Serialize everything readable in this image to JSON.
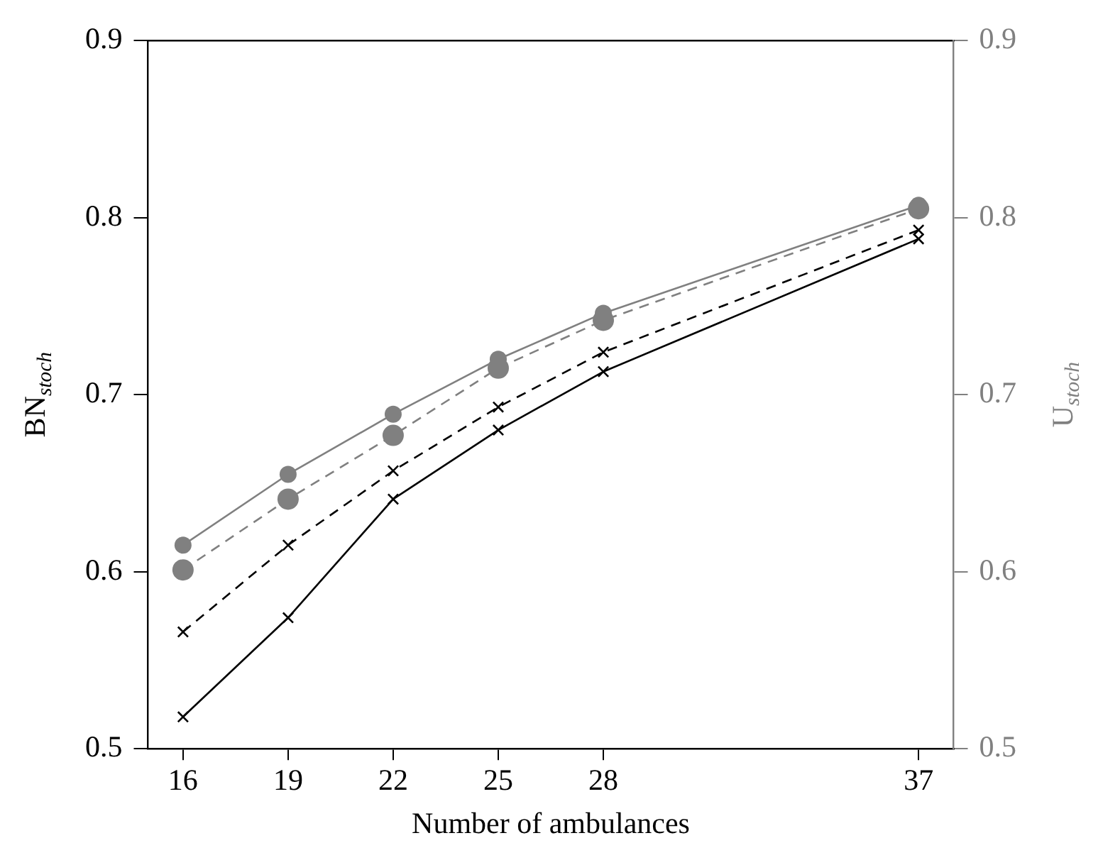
{
  "chart_data": {
    "type": "line",
    "xlabel": "Number of ambulances",
    "ylabel": "BN$_{stoch}$",
    "y2label": "U$_{stoch}$",
    "x": [
      16,
      19,
      22,
      25,
      28,
      37
    ],
    "xlim": [
      15,
      38
    ],
    "xticks": [
      16,
      19,
      22,
      25,
      28,
      37
    ],
    "ylim": [
      0.5,
      0.9
    ],
    "yticks": [
      0.5,
      0.6,
      0.7,
      0.8,
      0.9
    ],
    "y2lim": [
      0.5,
      0.9
    ],
    "y2ticks": [
      0.5,
      0.6,
      0.7,
      0.8,
      0.9
    ],
    "grid": false,
    "legend": false,
    "series": [
      {
        "color": "#000000",
        "marker": "cross",
        "line_style": "solid",
        "values": [
          0.518,
          0.574,
          0.641,
          0.68,
          0.713,
          0.788
        ]
      },
      {
        "color": "#000000",
        "marker": "cross",
        "line_style": "dashed",
        "values": [
          0.566,
          0.615,
          0.657,
          0.693,
          0.724,
          0.793
        ]
      },
      {
        "color": "#808080",
        "marker": "circle",
        "line_style": "solid",
        "axis": "y2",
        "values": [
          0.615,
          0.655,
          0.689,
          0.72,
          0.746,
          0.807
        ]
      },
      {
        "color": "#808080",
        "marker": "circle",
        "line_style": "dashed",
        "axis": "y2",
        "values": [
          0.601,
          0.641,
          0.677,
          0.715,
          0.742,
          0.805
        ]
      }
    ]
  }
}
